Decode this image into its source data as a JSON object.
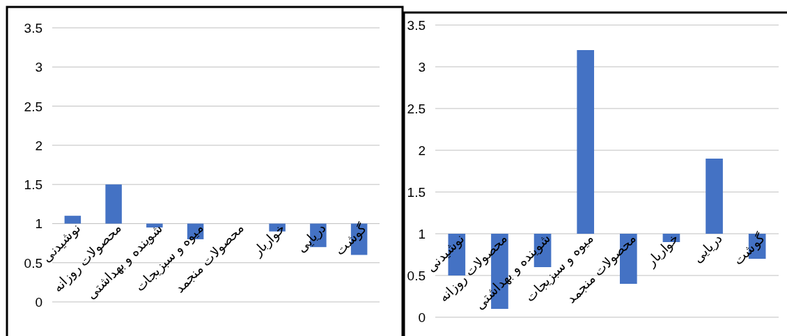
{
  "chart_data": [
    {
      "type": "bar",
      "categories": [
        "نوشیدنی",
        "محصولات روزانه",
        "شوینده و بهداشتی",
        "میوه و سبزیجات",
        "محصولات منجمد",
        "خواربار",
        "دریایی",
        "گوشت"
      ],
      "base": [
        1,
        1,
        1,
        1,
        null,
        1,
        1,
        1
      ],
      "values": [
        0.1,
        0.5,
        -0.05,
        -0.2,
        null,
        -0.1,
        -0.3,
        -0.4
      ],
      "color": "#4472c4",
      "ylim": [
        0,
        3.5
      ],
      "yticks": [
        0,
        0.5,
        1,
        1.5,
        2,
        2.5,
        3,
        3.5
      ],
      "grid": "y"
    },
    {
      "type": "bar",
      "categories": [
        "نوشیدنی",
        "محصولات روزانه",
        "شوینده و بهداشتی",
        "میوه و سبزیجات",
        "محصولات منجمد",
        "خواربار",
        "دریایی",
        "گوشت"
      ],
      "base": [
        1,
        1,
        1,
        1,
        1,
        1,
        1,
        1
      ],
      "values": [
        -0.5,
        -0.9,
        -0.4,
        2.2,
        -0.6,
        -0.1,
        0.9,
        -0.3
      ],
      "color": "#4472c4",
      "ylim": [
        0,
        3.5
      ],
      "yticks": [
        0,
        0.5,
        1,
        1.5,
        2,
        2.5,
        3,
        3.5
      ],
      "grid": "y"
    }
  ]
}
